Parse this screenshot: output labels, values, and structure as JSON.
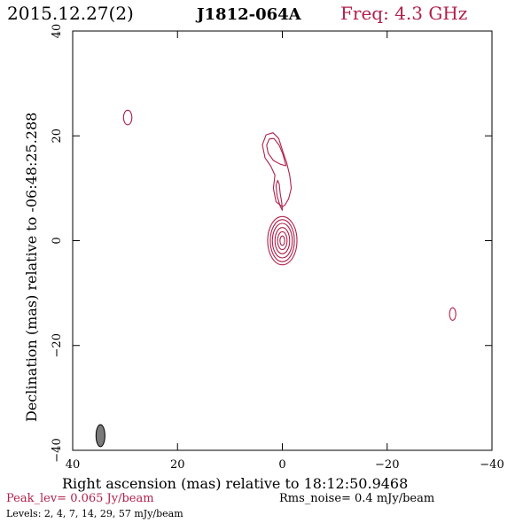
{
  "header": {
    "date": "2015.12.27(2)",
    "source": "J1812-064A",
    "freq": "Freq: 4.3 GHz"
  },
  "colors": {
    "contour": "#b0204a",
    "axis": "#000000",
    "beam_fill": "#7a7a7a"
  },
  "chart_data": {
    "type": "contour",
    "xlabel": "Right ascension (mas) relative to 18:12:50.9468",
    "ylabel": "Declination (mas) relative to -06:48:25.288",
    "xlim": [
      40,
      -40
    ],
    "ylim": [
      -40,
      40
    ],
    "x_ticks": [
      40,
      20,
      0,
      -20,
      -40
    ],
    "y_ticks": [
      -40,
      -20,
      0,
      20,
      40
    ],
    "x_tick_labels": [
      "40",
      "20",
      "0",
      "−20",
      "−40"
    ],
    "y_tick_labels": [
      "−40",
      "−20",
      "0",
      "20",
      "40"
    ],
    "beam": {
      "x": 34.7,
      "y": -37.2,
      "major_mas": 4.2,
      "minor_mas": 1.7,
      "pa_deg": 0
    },
    "contour_levels_mJy": [
      2,
      4,
      7,
      14,
      29,
      57
    ],
    "core": {
      "x": 0,
      "y": 0
    },
    "components": [
      {
        "name": "core",
        "levels": [
          {
            "level": 2,
            "rx": 2.8,
            "ry": 4.6
          },
          {
            "level": 4,
            "rx": 2.3,
            "ry": 4.0
          },
          {
            "level": 7,
            "rx": 1.9,
            "ry": 3.3
          },
          {
            "level": 14,
            "rx": 1.4,
            "ry": 2.5
          },
          {
            "level": 29,
            "rx": 0.9,
            "ry": 1.7
          },
          {
            "level": 57,
            "rx": 0.45,
            "ry": 0.9
          }
        ]
      },
      {
        "name": "blob-ne",
        "x": 29.5,
        "y": 23.5,
        "rx": 0.8,
        "ry": 1.4
      },
      {
        "name": "blob-sw",
        "x": -32.5,
        "y": -14,
        "rx": 0.6,
        "ry": 1.2
      }
    ],
    "jet_outer": [
      [
        0,
        6.5
      ],
      [
        1.2,
        7.4
      ],
      [
        1.7,
        10
      ],
      [
        1.4,
        12.5
      ],
      [
        2.2,
        14.2
      ],
      [
        3.3,
        15.8
      ],
      [
        3.8,
        18.3
      ],
      [
        3.1,
        20.2
      ],
      [
        1.8,
        20.6
      ],
      [
        0.7,
        19.5
      ],
      [
        -0.1,
        17
      ],
      [
        -0.8,
        15
      ],
      [
        -1.4,
        12.5
      ],
      [
        -1.7,
        10
      ],
      [
        -1.2,
        8
      ],
      [
        -0.5,
        6.8
      ],
      [
        0,
        6.5
      ]
    ],
    "jet_inner": [
      [
        -0.7,
        14.3
      ],
      [
        0.4,
        14.6
      ],
      [
        1.7,
        15.3
      ],
      [
        2.7,
        16.7
      ],
      [
        3,
        18.2
      ],
      [
        2.5,
        19.4
      ],
      [
        1.6,
        19.5
      ],
      [
        0.6,
        18.2
      ],
      [
        -0.1,
        16.5
      ],
      [
        -0.7,
        14.3
      ]
    ],
    "jet_stub": [
      [
        0,
        5.8
      ],
      [
        0.4,
        6.6
      ],
      [
        1.0,
        8.5
      ],
      [
        1.2,
        10.5
      ],
      [
        0.9,
        11.5
      ],
      [
        0.6,
        10.8
      ],
      [
        0.4,
        9
      ],
      [
        0.1,
        7.2
      ],
      [
        0,
        5.8
      ]
    ]
  },
  "footer": {
    "peak": "Peak_lev=  0.065 Jy/beam",
    "rms": "Rms_noise=  0.4 mJy/beam",
    "levels": "Levels:   2,   4,   7,  14,  29,  57 mJy/beam"
  }
}
